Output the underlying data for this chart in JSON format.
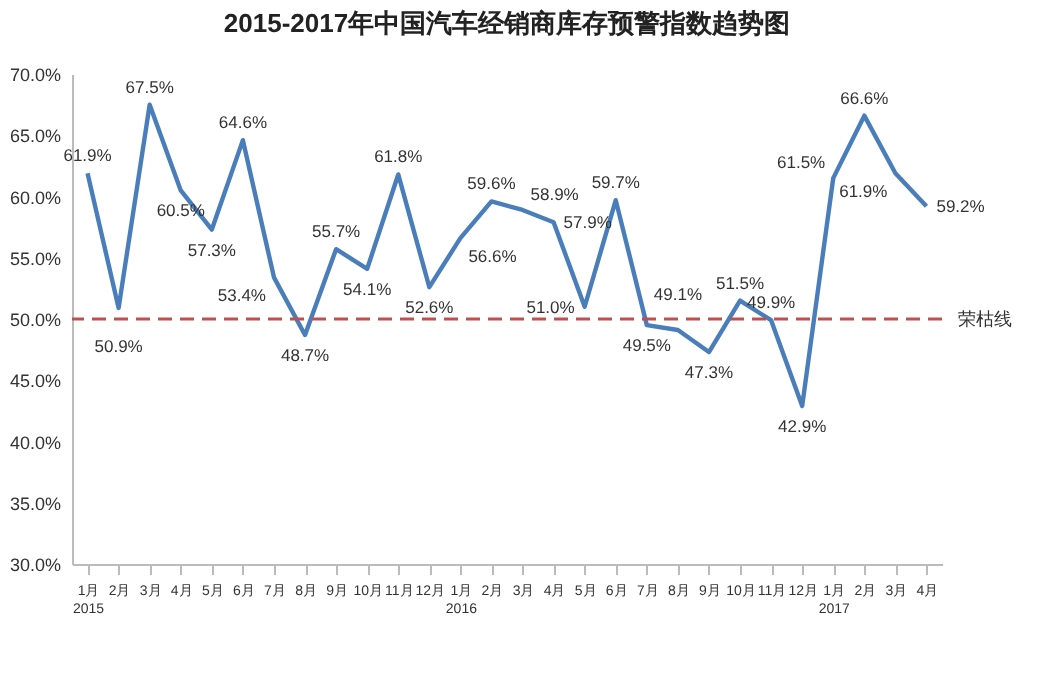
{
  "chart_data": {
    "type": "line",
    "title": "2015-2017年中国汽车经销商库存预警指数趋势图",
    "categories": [
      "1月\n2015",
      "2月",
      "3月",
      "4月",
      "5月",
      "6月",
      "7月",
      "8月",
      "9月",
      "10月",
      "11月",
      "12月",
      "1月\n2016",
      "2月",
      "3月",
      "4月",
      "5月",
      "6月",
      "7月",
      "8月",
      "9月",
      "10月",
      "11月",
      "12月",
      "1月\n2017",
      "2月",
      "3月",
      "4月"
    ],
    "series": [
      {
        "color": "#4a7ebb",
        "values": [
          61.9,
          50.9,
          67.5,
          60.5,
          57.3,
          64.6,
          53.4,
          48.7,
          55.7,
          54.1,
          61.8,
          52.6,
          56.6,
          59.6,
          58.9,
          57.9,
          51.0,
          59.7,
          49.5,
          49.1,
          47.3,
          51.5,
          49.9,
          42.9,
          61.5,
          66.6,
          61.9,
          59.2
        ],
        "value_labels": [
          "61.9%",
          "50.9%",
          "67.5%",
          "60.5%",
          "57.3%",
          "64.6%",
          "53.4%",
          "48.7%",
          "55.7%",
          "54.1%",
          "61.8%",
          "52.6%",
          "56.6%",
          "59.6%",
          "58.9%",
          "57.9%",
          "51.0%",
          "59.7%",
          "49.5%",
          "49.1%",
          "47.3%",
          "51.5%",
          "49.9%",
          "42.9%",
          "61.5%",
          "66.6%",
          "61.9%",
          "59.2%"
        ]
      }
    ],
    "ylim": [
      30,
      70
    ],
    "yticks": [
      {
        "value": 30,
        "label": "30.0%"
      },
      {
        "value": 35,
        "label": "35.0%"
      },
      {
        "value": 40,
        "label": "40.0%"
      },
      {
        "value": 45,
        "label": "45.0%"
      },
      {
        "value": 50,
        "label": "50.0%"
      },
      {
        "value": 55,
        "label": "55.0%"
      },
      {
        "value": 60,
        "label": "60.0%"
      },
      {
        "value": 65,
        "label": "65.0%"
      },
      {
        "value": 70,
        "label": "70.0%"
      }
    ],
    "ref_lines": [
      {
        "axis": "y",
        "value": 50,
        "label": "荣枯线",
        "color": "#c0504d",
        "line_style": "dashed"
      }
    ],
    "grid": false,
    "marker": "none",
    "line_style": "solid"
  }
}
